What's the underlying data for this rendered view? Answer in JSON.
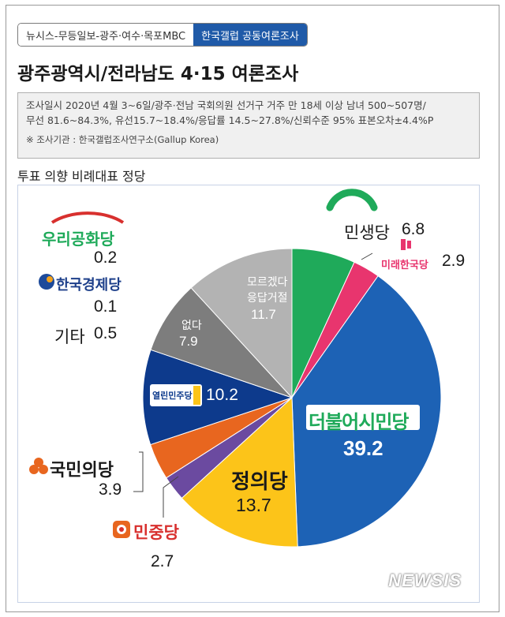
{
  "header": {
    "source": "뉴시스-무등일보-광주·여수·목포MBC",
    "joint": "한국갤럽 공동여론조사",
    "title": "광주광역시/전라남도 4·15 여론조사"
  },
  "info": {
    "line1": "조사일시 2020년 4월 3~6일/광주·전남 국회의원 선거구 거주 만 18세 이상 남녀 500~507명/",
    "line2": "무선 81.6~84.3%, 유선15.7~18.4%/응답률 14.5~27.8%/신뢰수준 95% 표본오차±4.4%P",
    "note": "※ 조사기관 : 한국갤럽조사연구소(Gallup Korea)"
  },
  "subhead": "투표 의향 비례대표 정당",
  "chart_data": {
    "type": "pie",
    "title": "투표 의향 비례대표 정당",
    "start": "12 o'clock, clockwise",
    "slices": [
      {
        "label": "민생당",
        "value": 6.8,
        "color": "#1faa5a"
      },
      {
        "label": "미래한국당",
        "value": 2.9,
        "color": "#e8356e"
      },
      {
        "label": "더불어시민당",
        "value": 39.2,
        "color": "#1d62b5"
      },
      {
        "label": "정의당",
        "value": 13.7,
        "color": "#fcc419"
      },
      {
        "label": "민중당",
        "value": 2.7,
        "color": "#6b4aa0"
      },
      {
        "label": "국민의당",
        "value": 3.9,
        "color": "#e8661f"
      },
      {
        "label": "열린민주당",
        "value": 10.2,
        "color": "#0d3a8c"
      },
      {
        "label": "없다",
        "value": 7.9,
        "color": "#7d7d7d"
      },
      {
        "label": "모르겠다 응답거절",
        "value": 11.7,
        "color": "#b3b3b3"
      }
    ],
    "others": [
      {
        "label": "우리공화당",
        "value": 0.2
      },
      {
        "label": "한국경제당",
        "value": 0.1
      },
      {
        "label": "기타",
        "value": 0.5
      }
    ]
  },
  "labels": {
    "minsaeng": {
      "name": "민생당",
      "value": "6.8"
    },
    "mirae": {
      "name": "미래한국당",
      "value": "2.9"
    },
    "deobureo": {
      "name": "더불어시민당",
      "value": "39.2"
    },
    "jeongui": {
      "name": "정의당",
      "value": "13.7"
    },
    "minjung": {
      "name": "민중당",
      "value": "2.7"
    },
    "gukmin": {
      "name": "국민의당",
      "value": "3.9"
    },
    "yeollin": {
      "name": "열린민주당",
      "value": "10.2"
    },
    "eopda": {
      "name": "없다",
      "value": "7.9"
    },
    "moreu": {
      "name1": "모르겠다",
      "name2": "응답거절",
      "value": "11.7"
    },
    "uri": {
      "name": "우리공화당",
      "value": "0.2"
    },
    "hangyeong": {
      "name": "한국경제당",
      "value": "0.1"
    },
    "gita": {
      "name": "기타",
      "value": "0.5"
    }
  },
  "watermark": "NEWSIS"
}
